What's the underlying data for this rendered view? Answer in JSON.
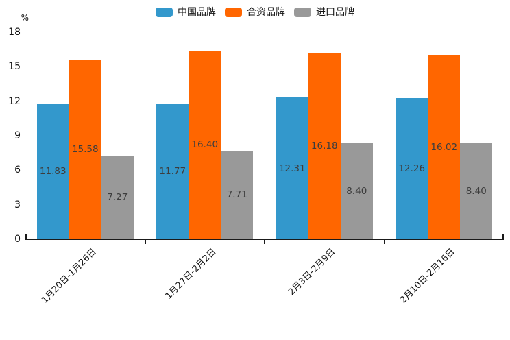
{
  "chart_data": {
    "type": "bar",
    "title": "",
    "xlabel": "",
    "ylabel": "%",
    "categories": [
      "1月20日-1月26日",
      "1月27日-2月2日",
      "2月3日-2月9日",
      "2月10日-2月16日"
    ],
    "series": [
      {
        "name": "中国品牌",
        "color": "#3398CC",
        "values": [
          11.83,
          11.77,
          12.31,
          12.26
        ]
      },
      {
        "name": "合资品牌",
        "color": "#FF6600",
        "values": [
          15.58,
          16.4,
          16.18,
          16.02
        ]
      },
      {
        "name": "进口品牌",
        "color": "#999999",
        "values": [
          7.27,
          7.71,
          8.4,
          8.4
        ]
      }
    ],
    "ylim": [
      0,
      18
    ],
    "yticks": [
      0,
      3,
      6,
      9,
      12,
      15,
      18
    ],
    "grid": false,
    "legend_position": "top",
    "value_labels": true,
    "value_label_format": "0.00",
    "axis_color": "#1a1a1a",
    "value_label_color": "#3d3d3d"
  }
}
